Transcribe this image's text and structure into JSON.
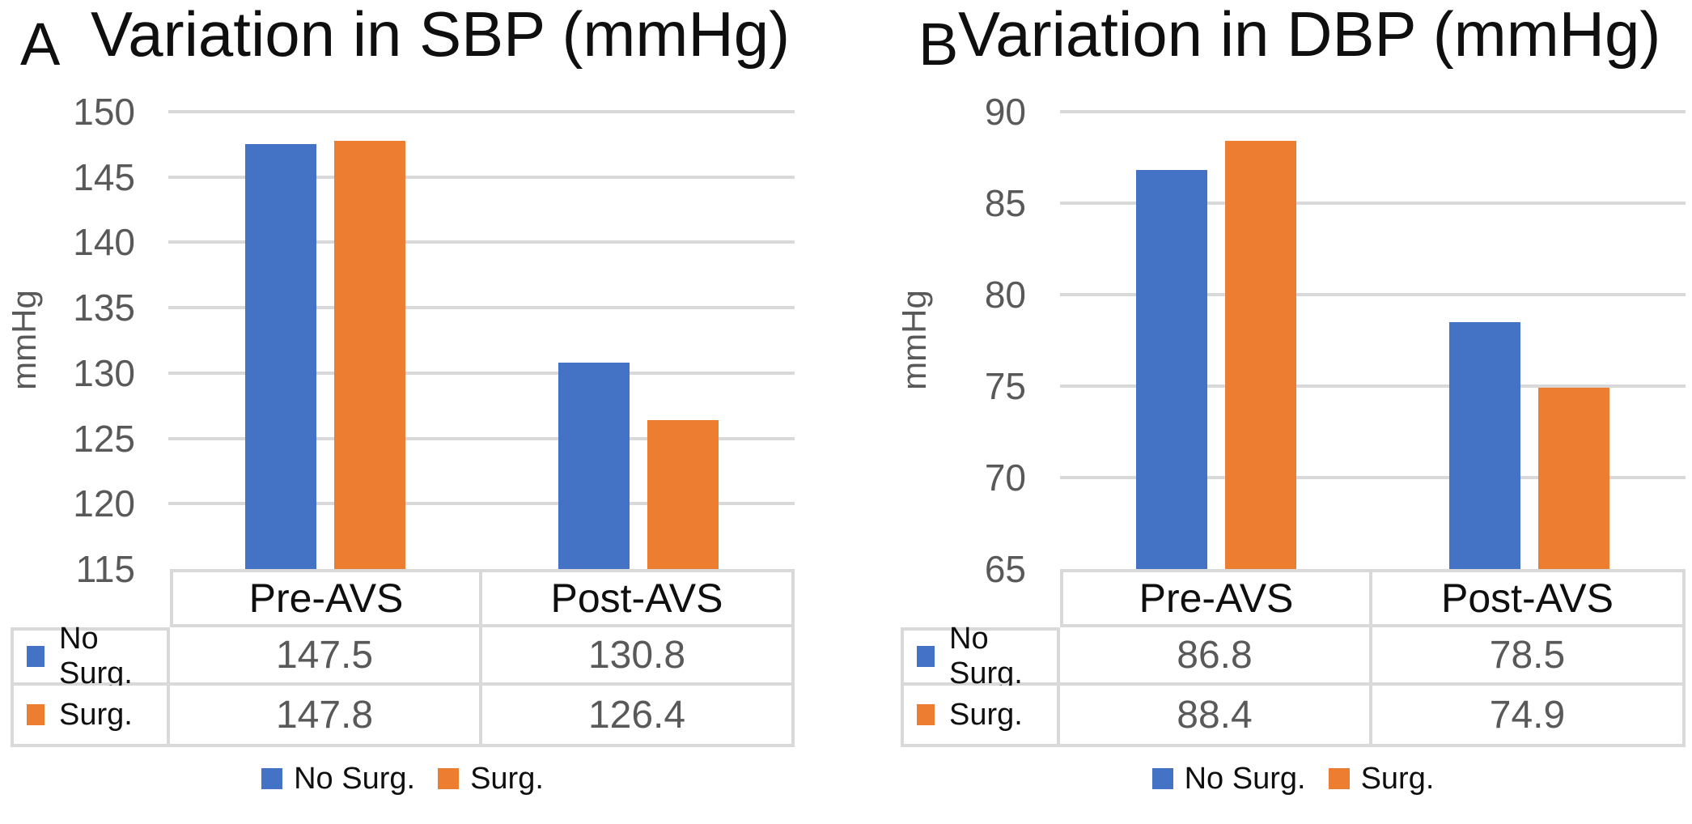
{
  "figure": {
    "panels": [
      {
        "letter": "A"
      },
      {
        "letter": "B"
      }
    ]
  },
  "chart_data": [
    {
      "type": "bar",
      "panel": "A",
      "title": "Variation in SBP (mmHg)",
      "categories": [
        "Pre-AVS",
        "Post-AVS"
      ],
      "series": [
        {
          "name": "No Surg.",
          "color": "#4472C4",
          "values": [
            147.5,
            130.8
          ]
        },
        {
          "name": "Surg.",
          "color": "#ED7D31",
          "values": [
            147.8,
            126.4
          ]
        }
      ],
      "ylabel": "mmHg",
      "ylim": [
        115,
        150
      ],
      "yticks": [
        150,
        145,
        140,
        135,
        130,
        125,
        120,
        115
      ],
      "grid": true,
      "legend_position": "bottom",
      "data_table_shown": true
    },
    {
      "type": "bar",
      "panel": "B",
      "title": "Variation in DBP (mmHg)",
      "categories": [
        "Pre-AVS",
        "Post-AVS"
      ],
      "series": [
        {
          "name": "No Surg.",
          "color": "#4472C4",
          "values": [
            86.8,
            78.5
          ]
        },
        {
          "name": "Surg.",
          "color": "#ED7D31",
          "values": [
            88.4,
            74.9
          ]
        }
      ],
      "ylabel": "mmHg",
      "ylim": [
        65,
        90
      ],
      "yticks": [
        90,
        85,
        80,
        75,
        70,
        65
      ],
      "grid": true,
      "legend_position": "bottom",
      "data_table_shown": true
    }
  ]
}
